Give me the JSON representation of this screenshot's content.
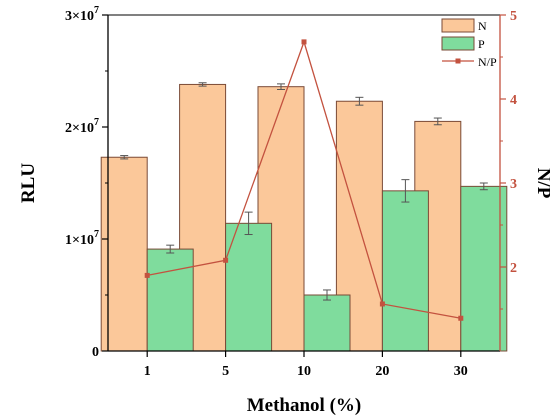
{
  "chart_data": {
    "type": "bar",
    "categories": [
      "1",
      "5",
      "10",
      "20",
      "30"
    ],
    "xlabel": "Methanol (%)",
    "ylabel": "RLU",
    "y2label": "N/P",
    "ylim": [
      0,
      30000000
    ],
    "yticks": [
      {
        "value": 0,
        "label": "0"
      },
      {
        "value": 10000000,
        "label": "1×10",
        "exp": "7"
      },
      {
        "value": 20000000,
        "label": "2×10",
        "exp": "7"
      },
      {
        "value": 30000000,
        "label": "3×10",
        "exp": "7"
      }
    ],
    "y2lim": [
      1,
      5
    ],
    "y2ticks": [
      2,
      3,
      4,
      5
    ],
    "grid": false,
    "legend_position": "top-right",
    "series": [
      {
        "name": "N",
        "axis": "left",
        "kind": "bar",
        "color": "#fbc89a",
        "values": [
          17300000,
          23800000,
          23600000,
          22300000,
          20500000
        ],
        "errors": [
          150000,
          150000,
          250000,
          350000,
          300000
        ]
      },
      {
        "name": "P",
        "axis": "left",
        "kind": "bar",
        "color": "#7fdc9d",
        "values": [
          9100000,
          11400000,
          5000000,
          14300000,
          14700000
        ],
        "errors": [
          350000,
          1000000,
          450000,
          1000000,
          300000
        ]
      },
      {
        "name": "N/P",
        "axis": "right",
        "kind": "line",
        "color": "#c3523f",
        "values": [
          1.9,
          2.08,
          4.68,
          1.56,
          1.39
        ]
      }
    ]
  }
}
